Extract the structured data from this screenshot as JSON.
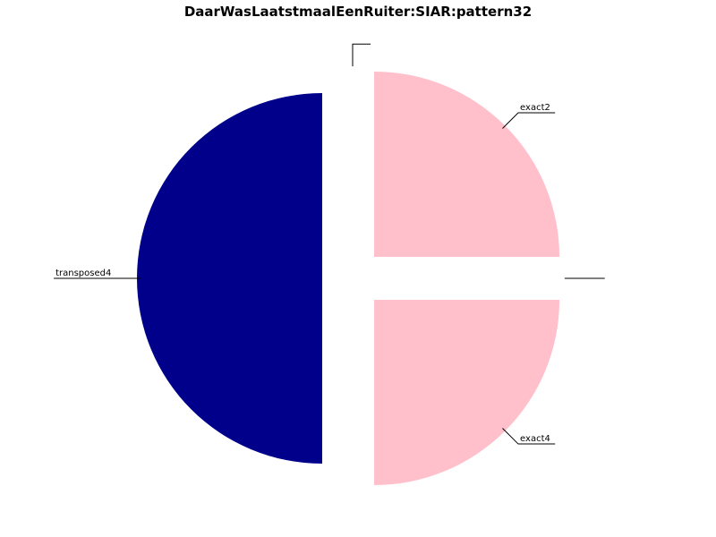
{
  "chart_data": {
    "type": "pie",
    "title": "DaarWasLaatstmaalEenRuiter:SIAR:pattern32",
    "slices": [
      {
        "label": "",
        "value": 0,
        "color": "#ffffff"
      },
      {
        "label": "exact2",
        "value": 25,
        "color": "#ffc0cb"
      },
      {
        "label": "",
        "value": 0,
        "color": "#ffffff"
      },
      {
        "label": "exact4",
        "value": 25,
        "color": "#ffc0cb"
      },
      {
        "label": "transposed4",
        "value": 50,
        "color": "#00008b"
      }
    ],
    "start_angle_deg": 90,
    "direction": "clockwise",
    "exploded": true
  }
}
